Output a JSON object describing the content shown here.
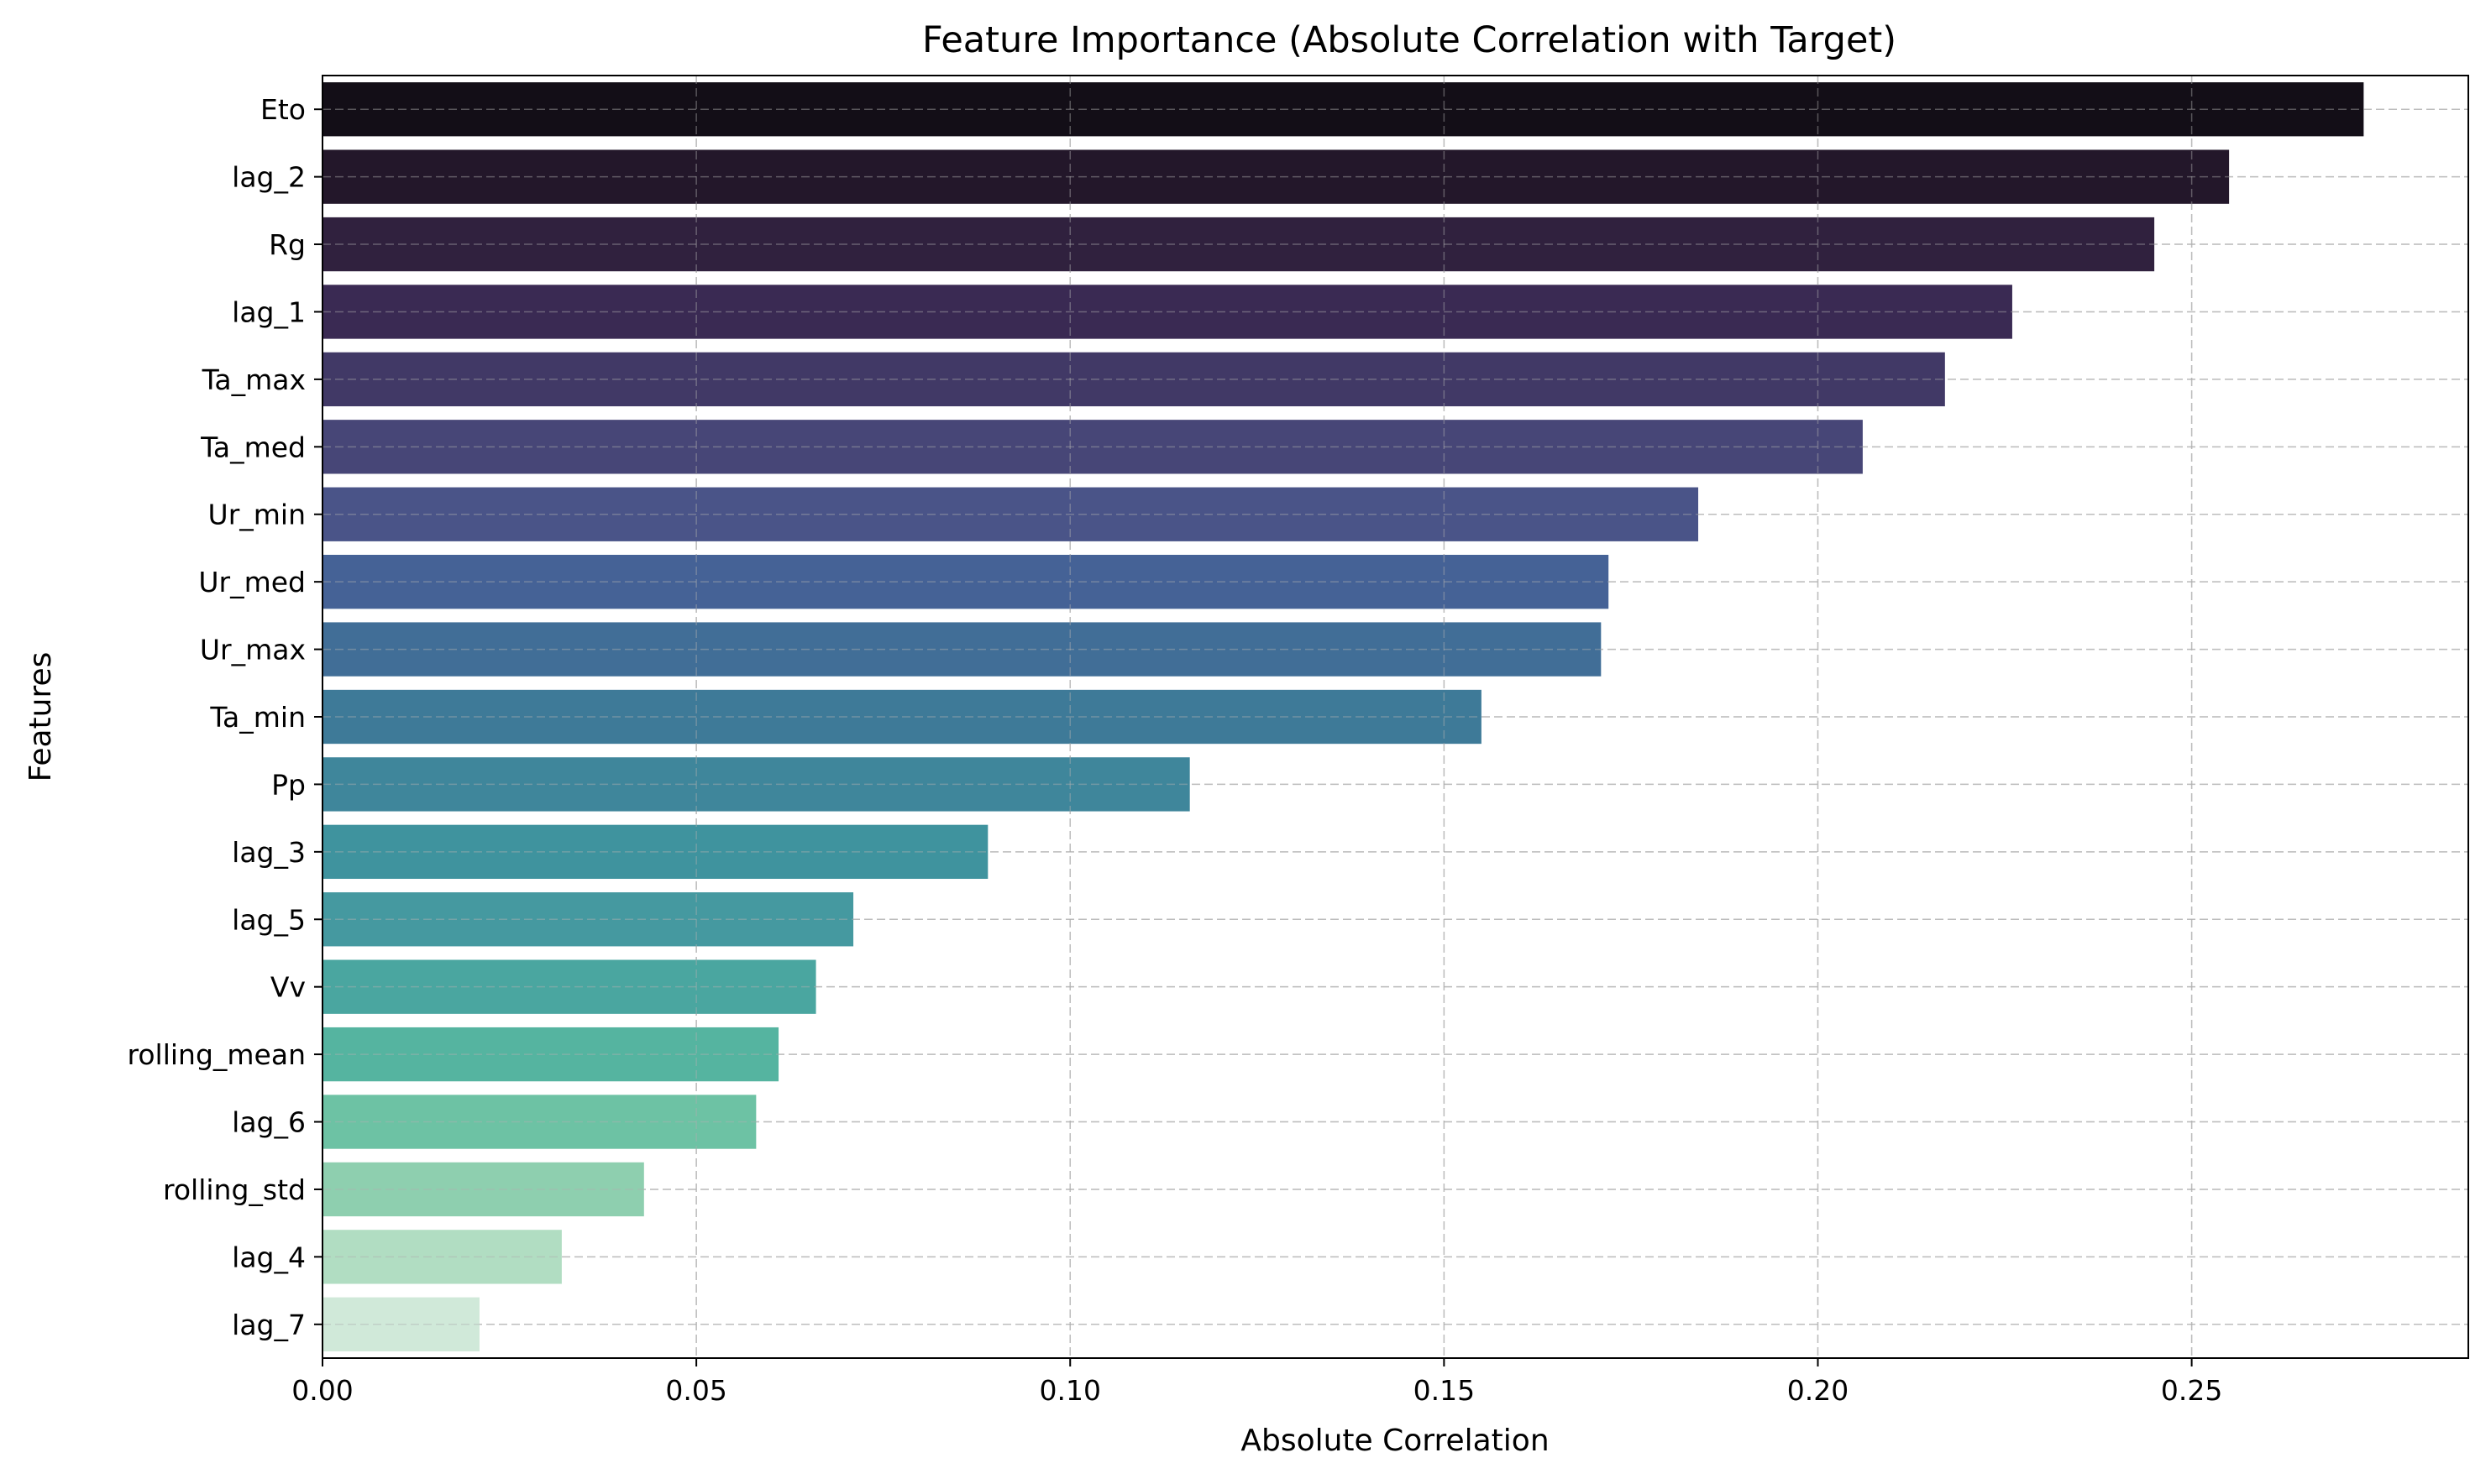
{
  "chart_data": {
    "type": "bar",
    "orientation": "horizontal",
    "title": "Feature Importance (Absolute Correlation with Target)",
    "xlabel": "Absolute Correlation",
    "ylabel": "Features",
    "xlim": [
      0,
      0.287
    ],
    "xticks": [
      "0.00",
      "0.05",
      "0.10",
      "0.15",
      "0.20",
      "0.25"
    ],
    "grid": true,
    "colormap": "mako",
    "categories": [
      "Eto",
      "lag_2",
      "Rg",
      "lag_1",
      "Ta_max",
      "Ta_med",
      "Ur_min",
      "Ur_med",
      "Ur_max",
      "Ta_min",
      "Pp",
      "lag_3",
      "lag_5",
      "Vv",
      "rolling_mean",
      "lag_6",
      "rolling_std",
      "lag_4",
      "lag_7"
    ],
    "values": [
      0.273,
      0.255,
      0.245,
      0.226,
      0.217,
      0.206,
      0.184,
      0.172,
      0.171,
      0.155,
      0.116,
      0.089,
      0.071,
      0.066,
      0.061,
      0.058,
      0.043,
      0.032,
      0.021
    ],
    "colors": [
      "#130e17",
      "#23172a",
      "#30213e",
      "#3a2a53",
      "#413966",
      "#474677",
      "#4a5488",
      "#456296",
      "#416e97",
      "#3e7a98",
      "#3f869b",
      "#3f939e",
      "#4599a0",
      "#4aa6a0",
      "#55b4a0",
      "#6dc2a4",
      "#8ecfaf",
      "#b1ddc2",
      "#d0e9d9"
    ]
  }
}
